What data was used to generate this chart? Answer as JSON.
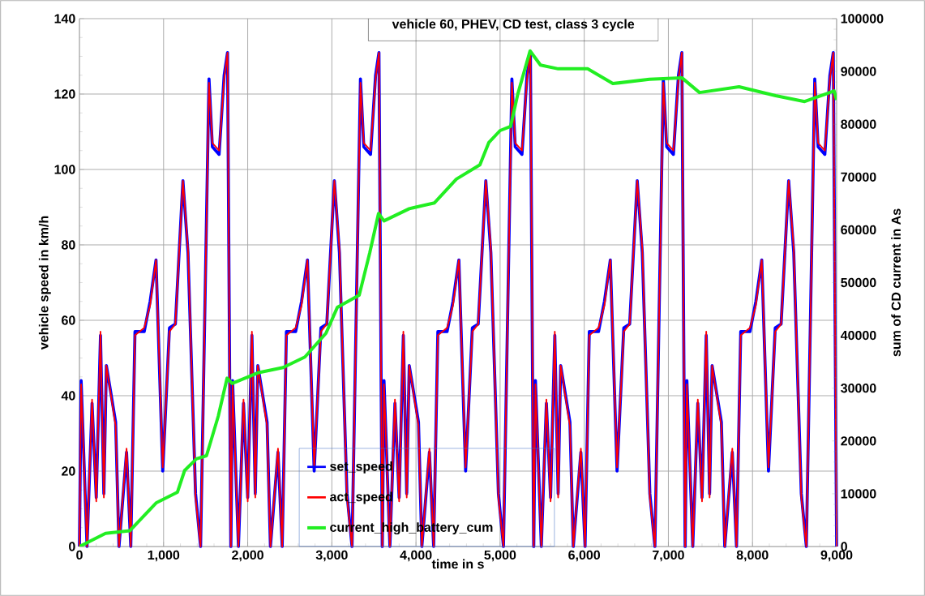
{
  "chart_data": {
    "type": "line",
    "title": "vehicle 60, PHEV, CD test, class 3 cycle",
    "xlabel": "time in s",
    "ylabel": "vehicle speed in km/h",
    "y2label": "sum of CD current in As",
    "x": [
      0,
      20,
      90,
      150,
      200,
      250,
      290,
      320,
      430,
      470,
      560,
      610,
      660,
      770,
      840,
      910,
      990,
      1070,
      1140,
      1230,
      1290,
      1380,
      1440,
      1540,
      1580,
      1660,
      1720,
      1760,
      1799,
      1800,
      1820,
      1890,
      1950,
      2000,
      2050,
      2090,
      2120,
      2230,
      2270,
      2360,
      2410,
      2460,
      2570,
      2640,
      2710,
      2790,
      2870,
      2940,
      3030,
      3090,
      3180,
      3240,
      3340,
      3380,
      3460,
      3520,
      3560,
      3599,
      3600,
      3620,
      3690,
      3750,
      3800,
      3850,
      3890,
      3920,
      4030,
      4070,
      4160,
      4210,
      4260,
      4370,
      4440,
      4510,
      4590,
      4670,
      4740,
      4830,
      4890,
      4980,
      5040,
      5140,
      5180,
      5260,
      5320,
      5360,
      5399,
      5400,
      5420,
      5490,
      5550,
      5600,
      5650,
      5690,
      5720,
      5830,
      5870,
      5960,
      6010,
      6060,
      6170,
      6240,
      6310,
      6390,
      6470,
      6540,
      6630,
      6690,
      6780,
      6840,
      6940,
      6980,
      7060,
      7120,
      7160,
      7199,
      7200,
      7220,
      7290,
      7350,
      7400,
      7450,
      7490,
      7520,
      7630,
      7670,
      7760,
      7810,
      7860,
      7970,
      8040,
      8110,
      8190,
      8270,
      8340,
      8430,
      8490,
      8580,
      8640,
      8740,
      8780,
      8860,
      8920,
      8960,
      9000
    ],
    "series": [
      {
        "name": "set_speed",
        "color": "#0000ff",
        "values": [
          0,
          44,
          0,
          38,
          13,
          56,
          14,
          48,
          33,
          0,
          25,
          0,
          57,
          57,
          65,
          76,
          20,
          58,
          59,
          97,
          78,
          14,
          0,
          124,
          106,
          104,
          125,
          131,
          0,
          0,
          44,
          0,
          38,
          13,
          56,
          14,
          48,
          33,
          0,
          25,
          0,
          57,
          57,
          65,
          76,
          20,
          58,
          59,
          97,
          78,
          14,
          0,
          124,
          106,
          104,
          125,
          131,
          0,
          0,
          44,
          0,
          38,
          13,
          56,
          14,
          48,
          33,
          0,
          25,
          0,
          57,
          57,
          65,
          76,
          20,
          58,
          59,
          97,
          78,
          14,
          0,
          124,
          106,
          104,
          125,
          131,
          0,
          0,
          44,
          0,
          38,
          13,
          56,
          14,
          48,
          33,
          0,
          25,
          0,
          57,
          57,
          65,
          76,
          20,
          58,
          59,
          97,
          78,
          14,
          0,
          124,
          106,
          104,
          125,
          131,
          0,
          0,
          44,
          0,
          38,
          13,
          56,
          14,
          48,
          33,
          0,
          25,
          0,
          57,
          57,
          65,
          76,
          20,
          58,
          59,
          97,
          78,
          14,
          0,
          124,
          106,
          104,
          125,
          131,
          0
        ]
      },
      {
        "name": "act_speed",
        "color": "#ff0000",
        "values": [
          0,
          43,
          0,
          39,
          12,
          57,
          13,
          48,
          32,
          0,
          26,
          0,
          56,
          58,
          64,
          76,
          21,
          57,
          59,
          97,
          79,
          13,
          0,
          123,
          107,
          105,
          124,
          131,
          0,
          0,
          43,
          0,
          39,
          12,
          57,
          13,
          48,
          32,
          0,
          26,
          0,
          56,
          58,
          64,
          76,
          21,
          57,
          59,
          97,
          79,
          13,
          0,
          123,
          107,
          105,
          124,
          131,
          0,
          0,
          43,
          0,
          39,
          12,
          57,
          13,
          48,
          32,
          0,
          26,
          0,
          56,
          58,
          64,
          76,
          21,
          57,
          59,
          97,
          79,
          13,
          0,
          123,
          107,
          105,
          124,
          131,
          0,
          0,
          43,
          0,
          39,
          12,
          57,
          13,
          48,
          32,
          0,
          26,
          0,
          56,
          58,
          64,
          76,
          21,
          57,
          59,
          97,
          79,
          13,
          0,
          123,
          107,
          105,
          124,
          131,
          0,
          0,
          43,
          0,
          39,
          12,
          57,
          13,
          48,
          32,
          0,
          26,
          0,
          56,
          58,
          64,
          76,
          21,
          57,
          59,
          97,
          79,
          13,
          0,
          123,
          107,
          105,
          124,
          131,
          0
        ]
      },
      {
        "name": "current_high_battery_cum",
        "color": "#22ee22",
        "axis": "y2",
        "x": [
          0,
          310,
          600,
          915,
          1165,
          1250,
          1390,
          1510,
          1650,
          1755,
          1815,
          2120,
          2420,
          2680,
          2930,
          3065,
          3325,
          3450,
          3555,
          3620,
          3920,
          4220,
          4480,
          4760,
          4865,
          5000,
          5125,
          5210,
          5356,
          5480,
          5690,
          6040,
          6340,
          6775,
          7160,
          7370,
          7840,
          8275,
          8620,
          8970,
          9000
        ],
        "values": [
          0,
          2500,
          3000,
          8300,
          10300,
          14400,
          16600,
          17200,
          24700,
          31900,
          30900,
          32900,
          33900,
          35900,
          40400,
          45300,
          47600,
          55600,
          63100,
          61700,
          64000,
          65100,
          69600,
          72300,
          76500,
          78800,
          79600,
          85700,
          93900,
          91200,
          90500,
          90500,
          87700,
          88500,
          88800,
          86000,
          87100,
          85400,
          84300,
          86300,
          84600
        ]
      }
    ],
    "xlim": [
      0,
      9000
    ],
    "xticks": [
      0,
      {
        "value": 1000,
        "label": "1,000"
      },
      {
        "value": 2000,
        "label": "2,000"
      },
      {
        "value": 3000,
        "label": "3,000"
      },
      {
        "value": 4000,
        "label": "4,000"
      },
      {
        "value": 5000,
        "label": "5,000"
      },
      {
        "value": 6000,
        "label": "6,000"
      },
      {
        "value": 7000,
        "label": "7,000"
      },
      {
        "value": 8000,
        "label": "8,000"
      },
      {
        "value": 9000,
        "label": "9,000"
      }
    ],
    "ylim": [
      0,
      140
    ],
    "yticks": [
      0,
      20,
      40,
      60,
      80,
      100,
      120,
      140
    ],
    "y2lim": [
      0,
      100000
    ],
    "y2ticks": [
      0,
      10000,
      20000,
      30000,
      40000,
      50000,
      60000,
      70000,
      80000,
      90000,
      100000
    ],
    "grid": true,
    "legend": "bottom",
    "line_style": "solid"
  }
}
